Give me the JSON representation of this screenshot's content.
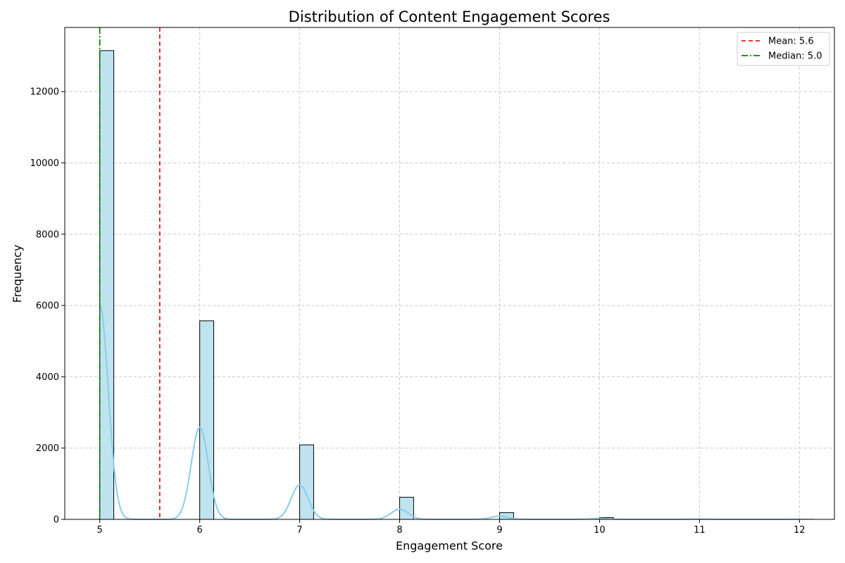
{
  "chart_data": {
    "type": "bar",
    "title": "Distribution of Content Engagement Scores",
    "xlabel": "Engagement Score",
    "ylabel": "Frequency",
    "xlim": [
      4.65,
      12.35
    ],
    "ylim": [
      0,
      13800
    ],
    "x_ticks": [
      5,
      6,
      7,
      8,
      9,
      10,
      11,
      12
    ],
    "y_ticks": [
      0,
      2000,
      4000,
      6000,
      8000,
      10000,
      12000
    ],
    "grid": true,
    "legend_position": "top-right",
    "bar_width": 0.14,
    "bars": [
      {
        "x": 5,
        "value": 13150
      },
      {
        "x": 6,
        "value": 5570
      },
      {
        "x": 7,
        "value": 2090
      },
      {
        "x": 8,
        "value": 620
      },
      {
        "x": 9,
        "value": 190
      },
      {
        "x": 10,
        "value": 50
      },
      {
        "x": 11,
        "value": 10
      },
      {
        "x": 12,
        "value": 3
      }
    ],
    "kde_peaks": [
      {
        "x": 5,
        "height": 6000
      },
      {
        "x": 6,
        "height": 2580
      },
      {
        "x": 7,
        "height": 970
      },
      {
        "x": 8,
        "height": 290
      },
      {
        "x": 9,
        "height": 90
      },
      {
        "x": 10,
        "height": 25
      },
      {
        "x": 11,
        "height": 6
      },
      {
        "x": 12,
        "height": 2
      }
    ],
    "kde_bandwidth": 0.085,
    "reference_lines": [
      {
        "name": "Mean: 5.6",
        "x": 5.6,
        "color": "#e41a1c",
        "style": "dashed"
      },
      {
        "name": "Median: 5.0",
        "x": 5.0,
        "color": "#008000",
        "style": "dashdot"
      }
    ],
    "colors": {
      "bar_fill": "#bfe3ef",
      "bar_edge": "#000000",
      "kde": "#87ceeb",
      "grid": "#c8c8c8"
    }
  }
}
